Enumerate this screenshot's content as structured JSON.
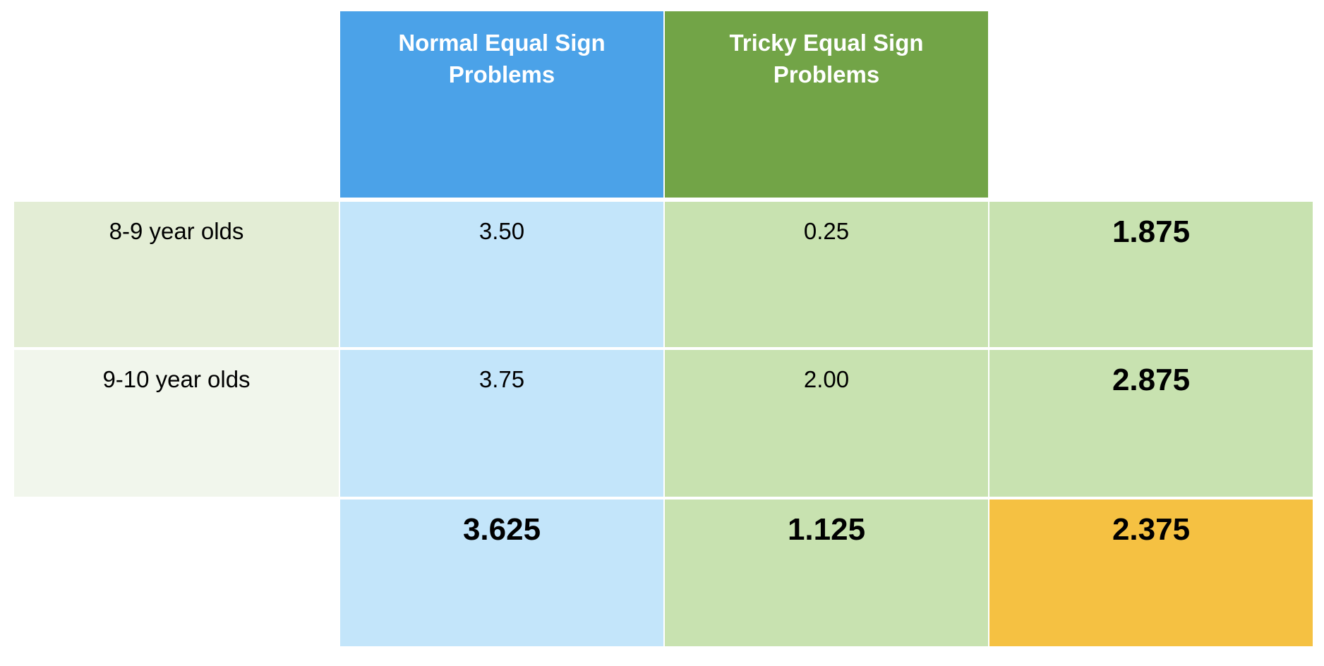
{
  "colors": {
    "header_normal": "#4BA2E8",
    "header_tricky": "#72A447",
    "cell_normal": "#C3E5FA",
    "cell_tricky": "#C8E2B0",
    "row_label_1": "#E3EDD5",
    "row_label_2": "#F1F6EC",
    "grand_mean": "#F5C142"
  },
  "chart_data": {
    "type": "table",
    "columns": [
      "Normal Equal Sign Problems",
      "Tricky Equal Sign Problems"
    ],
    "rows": [
      {
        "label": "8-9 year olds",
        "values": [
          "3.50",
          "0.25"
        ],
        "row_mean": "1.875"
      },
      {
        "label": "9-10 year olds",
        "values": [
          "3.75",
          "2.00"
        ],
        "row_mean": "2.875"
      }
    ],
    "column_means": [
      "3.625",
      "1.125"
    ],
    "grand_mean": "2.375"
  }
}
